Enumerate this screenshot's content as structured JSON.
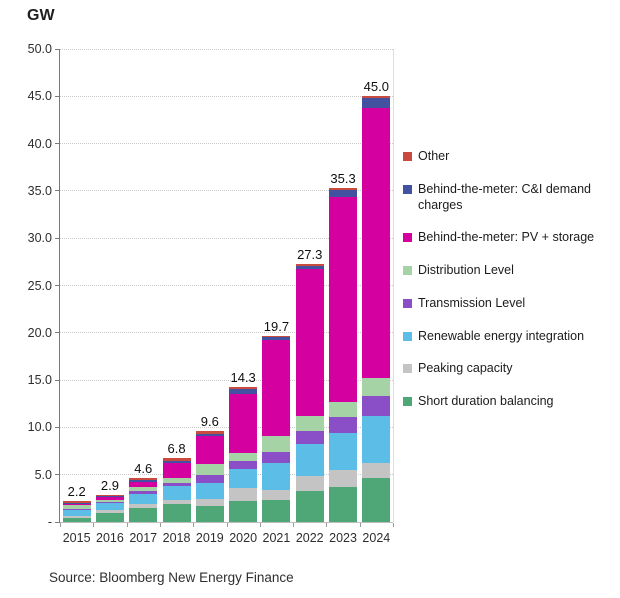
{
  "page": {
    "title": "GW",
    "source": "Source: Bloomberg New Energy Finance"
  },
  "chart_data": {
    "type": "bar",
    "stacked": true,
    "title": "GW",
    "unit": "GW",
    "categories": [
      "2015",
      "2016",
      "2017",
      "2018",
      "2019",
      "2020",
      "2021",
      "2022",
      "2023",
      "2024"
    ],
    "series": [
      {
        "name": "Short duration balancing",
        "color": "#4fa778",
        "values": [
          0.45,
          0.95,
          1.45,
          1.9,
          1.7,
          2.2,
          2.35,
          3.25,
          3.7,
          4.7
        ]
      },
      {
        "name": "Peaking capacity",
        "color": "#c4c4c4",
        "values": [
          0.2,
          0.3,
          0.4,
          0.45,
          0.75,
          1.4,
          1.05,
          1.6,
          1.75,
          1.55
        ]
      },
      {
        "name": "Renewable energy integration",
        "color": "#5cbee6",
        "values": [
          0.65,
          0.75,
          1.15,
          1.5,
          1.7,
          1.95,
          2.8,
          3.35,
          4.0,
          5.0
        ]
      },
      {
        "name": "Transmission Level",
        "color": "#8a4ec7",
        "values": [
          0.1,
          0.1,
          0.25,
          0.3,
          0.85,
          0.9,
          1.25,
          1.4,
          1.65,
          2.05
        ]
      },
      {
        "name": "Distribution Level",
        "color": "#a6d3a6",
        "values": [
          0.35,
          0.25,
          0.45,
          0.45,
          1.15,
          0.8,
          1.6,
          1.6,
          1.6,
          1.95
        ]
      },
      {
        "name": "Behind-the-meter: PV + storage",
        "color": "#d400a0",
        "values": [
          0.2,
          0.3,
          0.55,
          1.6,
          2.9,
          6.3,
          10.15,
          15.5,
          21.7,
          28.5
        ]
      },
      {
        "name": "Behind-the-meter: C&I demand charges",
        "color": "#4252a0",
        "values": [
          0.1,
          0.1,
          0.15,
          0.25,
          0.3,
          0.55,
          0.35,
          0.4,
          0.7,
          1.05
        ]
      },
      {
        "name": "Other",
        "color": "#c94a3f",
        "values": [
          0.15,
          0.15,
          0.2,
          0.35,
          0.25,
          0.2,
          0.15,
          0.2,
          0.2,
          0.2
        ]
      }
    ],
    "totals": [
      "2.2",
      "2.9",
      "4.6",
      "6.8",
      "9.6",
      "14.3",
      "19.7",
      "27.3",
      "35.3",
      "45.0"
    ],
    "ylim": [
      0,
      50
    ],
    "ytick_step": 5,
    "ytick_labels_bottom_to_top": [
      "-",
      "5.0",
      "10.0",
      "15.0",
      "20.0",
      "25.0",
      "30.0",
      "35.0",
      "40.0",
      "45.0",
      "50.0"
    ],
    "grid": "horizontal-dotted",
    "legend_position": "right",
    "legend_order_top_to_bottom": [
      "Other",
      "Behind-the-meter: C&I demand charges",
      "Behind-the-meter: PV + storage",
      "Distribution Level",
      "Transmission Level",
      "Renewable energy integration",
      "Peaking capacity",
      "Short duration balancing"
    ]
  }
}
